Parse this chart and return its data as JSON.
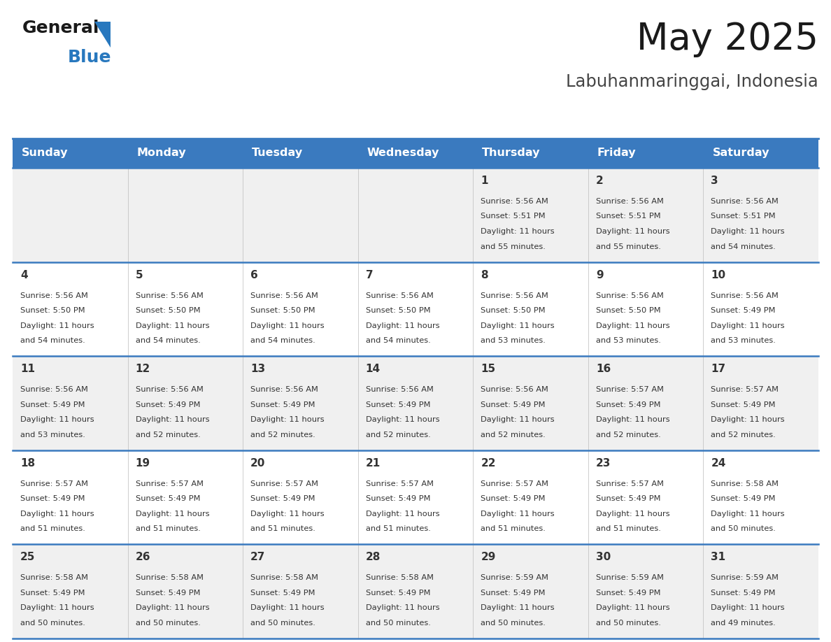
{
  "title": "May 2025",
  "subtitle": "Labuhanmaringgai, Indonesia",
  "days_of_week": [
    "Sunday",
    "Monday",
    "Tuesday",
    "Wednesday",
    "Thursday",
    "Friday",
    "Saturday"
  ],
  "header_bg": "#3a7abf",
  "header_text": "#ffffff",
  "row_bg_odd": "#f0f0f0",
  "row_bg_even": "#ffffff",
  "separator_color": "#3a7abf",
  "cell_text_color": "#333333",
  "title_color": "#1a1a1a",
  "subtitle_color": "#444444",
  "logo_black": "#1a1a1a",
  "logo_blue": "#2878be",
  "calendar": [
    [
      null,
      null,
      null,
      null,
      {
        "day": 1,
        "sunrise": "5:56 AM",
        "sunset": "5:51 PM",
        "daylight_hours": 11,
        "daylight_mins": 55
      },
      {
        "day": 2,
        "sunrise": "5:56 AM",
        "sunset": "5:51 PM",
        "daylight_hours": 11,
        "daylight_mins": 55
      },
      {
        "day": 3,
        "sunrise": "5:56 AM",
        "sunset": "5:51 PM",
        "daylight_hours": 11,
        "daylight_mins": 54
      }
    ],
    [
      {
        "day": 4,
        "sunrise": "5:56 AM",
        "sunset": "5:50 PM",
        "daylight_hours": 11,
        "daylight_mins": 54
      },
      {
        "day": 5,
        "sunrise": "5:56 AM",
        "sunset": "5:50 PM",
        "daylight_hours": 11,
        "daylight_mins": 54
      },
      {
        "day": 6,
        "sunrise": "5:56 AM",
        "sunset": "5:50 PM",
        "daylight_hours": 11,
        "daylight_mins": 54
      },
      {
        "day": 7,
        "sunrise": "5:56 AM",
        "sunset": "5:50 PM",
        "daylight_hours": 11,
        "daylight_mins": 54
      },
      {
        "day": 8,
        "sunrise": "5:56 AM",
        "sunset": "5:50 PM",
        "daylight_hours": 11,
        "daylight_mins": 53
      },
      {
        "day": 9,
        "sunrise": "5:56 AM",
        "sunset": "5:50 PM",
        "daylight_hours": 11,
        "daylight_mins": 53
      },
      {
        "day": 10,
        "sunrise": "5:56 AM",
        "sunset": "5:49 PM",
        "daylight_hours": 11,
        "daylight_mins": 53
      }
    ],
    [
      {
        "day": 11,
        "sunrise": "5:56 AM",
        "sunset": "5:49 PM",
        "daylight_hours": 11,
        "daylight_mins": 53
      },
      {
        "day": 12,
        "sunrise": "5:56 AM",
        "sunset": "5:49 PM",
        "daylight_hours": 11,
        "daylight_mins": 52
      },
      {
        "day": 13,
        "sunrise": "5:56 AM",
        "sunset": "5:49 PM",
        "daylight_hours": 11,
        "daylight_mins": 52
      },
      {
        "day": 14,
        "sunrise": "5:56 AM",
        "sunset": "5:49 PM",
        "daylight_hours": 11,
        "daylight_mins": 52
      },
      {
        "day": 15,
        "sunrise": "5:56 AM",
        "sunset": "5:49 PM",
        "daylight_hours": 11,
        "daylight_mins": 52
      },
      {
        "day": 16,
        "sunrise": "5:57 AM",
        "sunset": "5:49 PM",
        "daylight_hours": 11,
        "daylight_mins": 52
      },
      {
        "day": 17,
        "sunrise": "5:57 AM",
        "sunset": "5:49 PM",
        "daylight_hours": 11,
        "daylight_mins": 52
      }
    ],
    [
      {
        "day": 18,
        "sunrise": "5:57 AM",
        "sunset": "5:49 PM",
        "daylight_hours": 11,
        "daylight_mins": 51
      },
      {
        "day": 19,
        "sunrise": "5:57 AM",
        "sunset": "5:49 PM",
        "daylight_hours": 11,
        "daylight_mins": 51
      },
      {
        "day": 20,
        "sunrise": "5:57 AM",
        "sunset": "5:49 PM",
        "daylight_hours": 11,
        "daylight_mins": 51
      },
      {
        "day": 21,
        "sunrise": "5:57 AM",
        "sunset": "5:49 PM",
        "daylight_hours": 11,
        "daylight_mins": 51
      },
      {
        "day": 22,
        "sunrise": "5:57 AM",
        "sunset": "5:49 PM",
        "daylight_hours": 11,
        "daylight_mins": 51
      },
      {
        "day": 23,
        "sunrise": "5:57 AM",
        "sunset": "5:49 PM",
        "daylight_hours": 11,
        "daylight_mins": 51
      },
      {
        "day": 24,
        "sunrise": "5:58 AM",
        "sunset": "5:49 PM",
        "daylight_hours": 11,
        "daylight_mins": 50
      }
    ],
    [
      {
        "day": 25,
        "sunrise": "5:58 AM",
        "sunset": "5:49 PM",
        "daylight_hours": 11,
        "daylight_mins": 50
      },
      {
        "day": 26,
        "sunrise": "5:58 AM",
        "sunset": "5:49 PM",
        "daylight_hours": 11,
        "daylight_mins": 50
      },
      {
        "day": 27,
        "sunrise": "5:58 AM",
        "sunset": "5:49 PM",
        "daylight_hours": 11,
        "daylight_mins": 50
      },
      {
        "day": 28,
        "sunrise": "5:58 AM",
        "sunset": "5:49 PM",
        "daylight_hours": 11,
        "daylight_mins": 50
      },
      {
        "day": 29,
        "sunrise": "5:59 AM",
        "sunset": "5:49 PM",
        "daylight_hours": 11,
        "daylight_mins": 50
      },
      {
        "day": 30,
        "sunrise": "5:59 AM",
        "sunset": "5:49 PM",
        "daylight_hours": 11,
        "daylight_mins": 50
      },
      {
        "day": 31,
        "sunrise": "5:59 AM",
        "sunset": "5:49 PM",
        "daylight_hours": 11,
        "daylight_mins": 49
      }
    ]
  ]
}
